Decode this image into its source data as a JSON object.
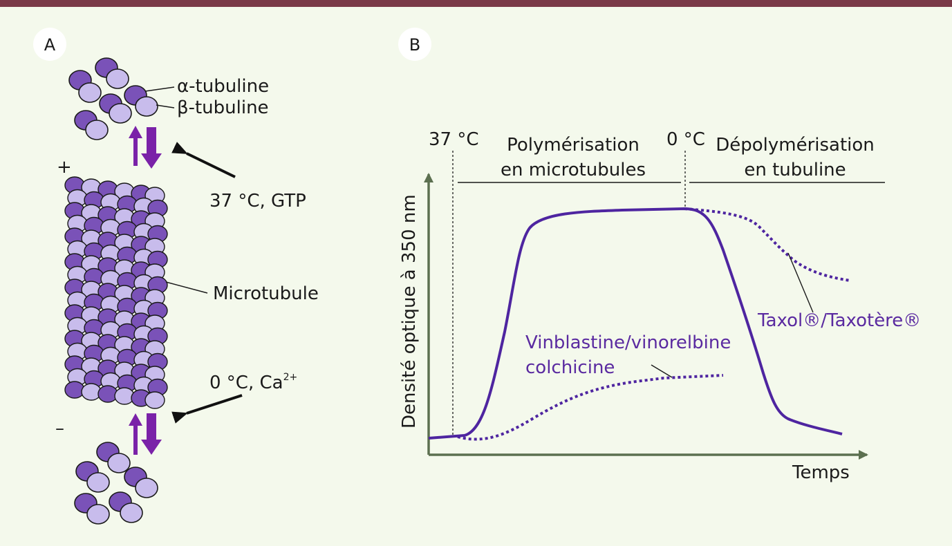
{
  "panel_a": {
    "letter": "A",
    "alpha_label": "α-tubuline",
    "beta_label": "β-tubuline",
    "plus_sign": "+",
    "minus_sign": "–",
    "condition_polymerize": "37 °C, GTP",
    "condition_depolymerize": "0 °C, Ca",
    "condition_depolymerize_sup": "2+",
    "microtubule_label": "Microtubule"
  },
  "panel_b": {
    "letter": "B",
    "marker_37": "37 °C",
    "marker_0": "0 °C",
    "phase_polymerization_line1": "Polymérisation",
    "phase_polymerization_line2": "en microtubules",
    "phase_depolymerization_line1": "Dépolymérisation",
    "phase_depolymerization_line2": "en tubuline",
    "ylabel": "Densité optique à 350 nm",
    "xlabel": "Temps",
    "taxol_label": "Taxol®/Taxotère®",
    "vinca_label_line1": "Vinblastine/vinorelbine",
    "vinca_label_line2": "colchicine"
  },
  "colors": {
    "background": "#f4f9ec",
    "top_bar": "#7a3a48",
    "alpha": "#7a52b8",
    "beta": "#c8bcec",
    "arrow_purple": "#7a22a8",
    "curve": "#4e25a0",
    "axis": "#5c7050"
  }
}
